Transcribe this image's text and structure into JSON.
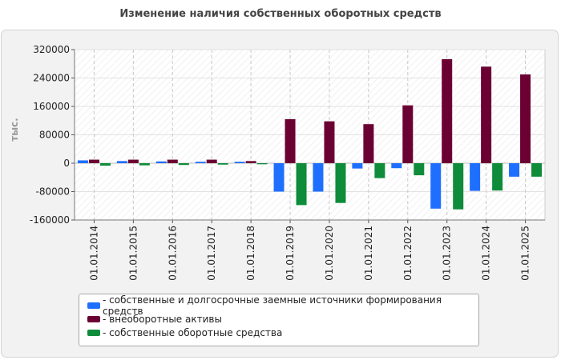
{
  "chart_data": {
    "type": "bar",
    "title": "Изменение наличия собственных оборотных средств",
    "ylabel": "тыс.",
    "xlabel": "",
    "ylim": [
      -160000,
      320000
    ],
    "yticks": [
      320000,
      240000,
      160000,
      80000,
      0,
      -80000,
      -160000
    ],
    "ytick_labels": [
      "320000",
      "240000",
      "160000",
      "80000",
      "0",
      "-80000",
      "-160000"
    ],
    "grid": true,
    "legend_position": "bottom",
    "categories": [
      "01.01.2014",
      "01.01.2015",
      "01.01.2016",
      "01.01.2017",
      "01.01.2018",
      "01.01.2019",
      "01.01.2020",
      "01.01.2021",
      "01.01.2022",
      "01.01.2023",
      "01.01.2024",
      "01.01.2025"
    ],
    "series": [
      {
        "name": "собственные и долгосрочные заемные источники формирования средств",
        "color": "#1f6fff",
        "values": [
          8000,
          6000,
          5000,
          4000,
          4000,
          -80000,
          -80000,
          -15000,
          -14000,
          -128000,
          -78000,
          -38000
        ]
      },
      {
        "name": "внеоборотные активы",
        "color": "#6b0032",
        "values": [
          10000,
          10000,
          10000,
          10000,
          6000,
          124000,
          118000,
          110000,
          163000,
          293000,
          272000,
          250000
        ]
      },
      {
        "name": "собственные оборотные средства",
        "color": "#0e8c3a",
        "values": [
          -7000,
          -6000,
          -5000,
          -4000,
          -3000,
          -118000,
          -112000,
          -42000,
          -34000,
          -130000,
          -77000,
          -38000
        ]
      }
    ]
  }
}
